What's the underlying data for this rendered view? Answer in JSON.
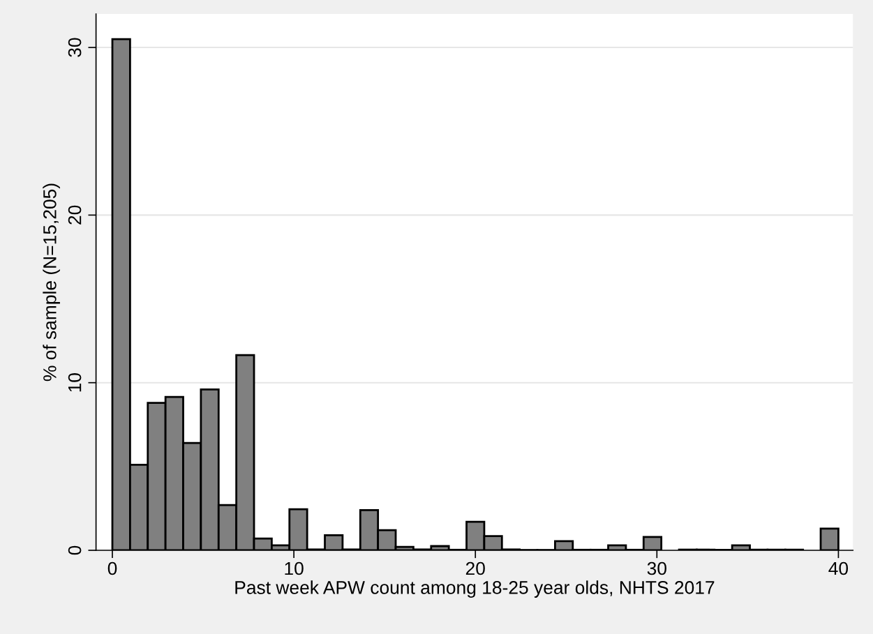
{
  "chart_data": {
    "type": "histogram",
    "xlabel": "Past week APW count among 18-25 year olds, NHTS 2017",
    "ylabel": "% of sample (N=15,205)",
    "bins": [
      0,
      0.976,
      1.951,
      2.927,
      3.902,
      4.878,
      5.854,
      6.829,
      7.805,
      8.78,
      9.756,
      10.732,
      11.707,
      12.683,
      13.659,
      14.634,
      15.61,
      16.585,
      17.561,
      18.537,
      19.512,
      20.488,
      21.463,
      22.439,
      23.415,
      24.39,
      25.366,
      26.341,
      27.317,
      28.293,
      29.268,
      30.244,
      31.22,
      32.195,
      33.171,
      34.146,
      35.122,
      36.098,
      37.073,
      38.049,
      39.024,
      40
    ],
    "values": [
      30.5,
      5.1,
      8.8,
      9.15,
      6.4,
      9.6,
      2.7,
      11.65,
      0.7,
      0.3,
      2.45,
      0.05,
      0.9,
      0.05,
      2.4,
      1.2,
      0.2,
      0.05,
      0.25,
      0.03,
      1.7,
      0.85,
      0.05,
      0.02,
      0.02,
      0.55,
      0.03,
      0.03,
      0.3,
      0.03,
      0.8,
      0,
      0.04,
      0.04,
      0.03,
      0.3,
      0.04,
      0.04,
      0.04,
      0,
      1.3
    ],
    "color": "#808080",
    "xlim": [
      -0.9,
      40.8
    ],
    "ylim": [
      0,
      32
    ],
    "xticks": [
      0,
      10,
      20,
      30,
      40
    ],
    "yticks": [
      0,
      10,
      20,
      30
    ],
    "grid": "y"
  }
}
